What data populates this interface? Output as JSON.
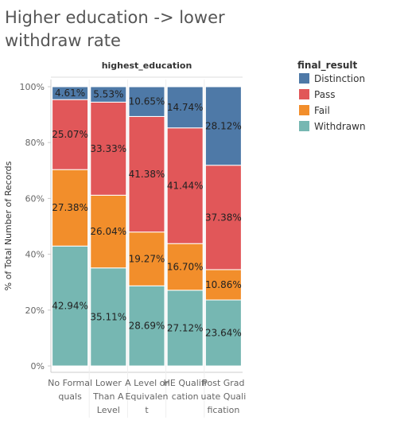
{
  "chart_data": {
    "type": "bar",
    "stacked": true,
    "title": "Higher education ->  lower withdraw rate",
    "column_header": "highest_education",
    "ylabel": "% of Total Number of Records",
    "ylim": [
      0,
      100
    ],
    "yticks": [
      "0%",
      "20%",
      "40%",
      "60%",
      "80%",
      "100%"
    ],
    "categories": [
      [
        "No Formal",
        "quals"
      ],
      [
        "Lower",
        "Than A",
        "Level"
      ],
      [
        "A Level or",
        "Equivalen",
        "t"
      ],
      [
        "HE Qualifi",
        "cation"
      ],
      [
        "Post Grad",
        "uate Quali",
        "fication"
      ]
    ],
    "legend_title": "final_result",
    "legend_position": "right",
    "series": [
      {
        "name": "Withdrawn",
        "color": "#76b7b2",
        "values": [
          42.94,
          35.11,
          28.69,
          27.12,
          23.64
        ],
        "labels": [
          "42.94%",
          "35.11%",
          "28.69%",
          "27.12%",
          "23.64%"
        ]
      },
      {
        "name": "Fail",
        "color": "#f28e2b",
        "values": [
          27.38,
          26.04,
          19.27,
          16.7,
          10.86
        ],
        "labels": [
          "27.38%",
          "26.04%",
          "19.27%",
          "16.70%",
          "10.86%"
        ]
      },
      {
        "name": "Pass",
        "color": "#e15759",
        "values": [
          25.07,
          33.33,
          41.38,
          41.44,
          37.38
        ],
        "labels": [
          "25.07%",
          "33.33%",
          "41.38%",
          "41.44%",
          "37.38%"
        ]
      },
      {
        "name": "Distinction",
        "color": "#4e79a7",
        "values": [
          4.61,
          5.53,
          10.65,
          14.74,
          28.12
        ],
        "labels": [
          "4.61%",
          "5.53%",
          "10.65%",
          "14.74%",
          "28.12%"
        ]
      }
    ],
    "legend_order": [
      "Distinction",
      "Pass",
      "Fail",
      "Withdrawn"
    ]
  }
}
